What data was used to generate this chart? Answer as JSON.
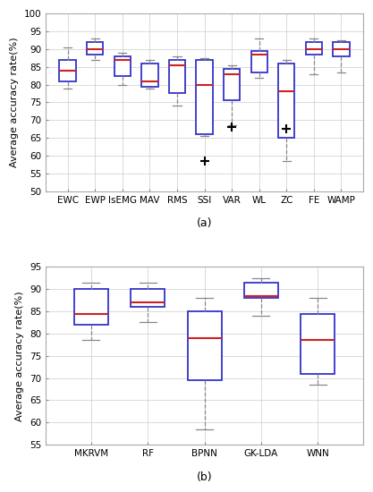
{
  "plot_a": {
    "categories": [
      "EWC",
      "EWP",
      "IsEMG",
      "MAV",
      "RMS",
      "SSI",
      "VAR",
      "WL",
      "ZC",
      "FE",
      "WAMP"
    ],
    "boxes": [
      {
        "whislo": 79.0,
        "q1": 81.0,
        "med": 84.0,
        "q3": 87.0,
        "whishi": 90.5,
        "fliers": []
      },
      {
        "whislo": 87.0,
        "q1": 88.5,
        "med": 90.0,
        "q3": 92.0,
        "whishi": 93.0,
        "fliers": []
      },
      {
        "whislo": 80.0,
        "q1": 82.5,
        "med": 87.0,
        "q3": 88.0,
        "whishi": 89.0,
        "fliers": []
      },
      {
        "whislo": 79.0,
        "q1": 79.5,
        "med": 81.0,
        "q3": 86.0,
        "whishi": 87.0,
        "fliers": []
      },
      {
        "whislo": 74.0,
        "q1": 77.5,
        "med": 85.5,
        "q3": 87.0,
        "whishi": 88.0,
        "fliers": []
      },
      {
        "whislo": 65.5,
        "q1": 66.0,
        "med": 80.0,
        "q3": 87.0,
        "whishi": 87.5,
        "fliers": [
          58.5
        ]
      },
      {
        "whislo": 68.5,
        "q1": 75.5,
        "med": 83.0,
        "q3": 84.5,
        "whishi": 85.5,
        "fliers": [
          68.0
        ]
      },
      {
        "whislo": 82.0,
        "q1": 83.5,
        "med": 88.5,
        "q3": 89.5,
        "whishi": 93.0,
        "fliers": []
      },
      {
        "whislo": 58.5,
        "q1": 65.0,
        "med": 78.0,
        "q3": 86.0,
        "whishi": 87.0,
        "fliers": [
          67.5
        ]
      },
      {
        "whislo": 83.0,
        "q1": 88.5,
        "med": 90.0,
        "q3": 92.0,
        "whishi": 93.0,
        "fliers": []
      },
      {
        "whislo": 83.5,
        "q1": 88.0,
        "med": 90.0,
        "q3": 92.0,
        "whishi": 92.5,
        "fliers": []
      }
    ],
    "ylim": [
      50,
      100
    ],
    "yticks": [
      50,
      55,
      60,
      65,
      70,
      75,
      80,
      85,
      90,
      95,
      100
    ],
    "ylabel": "Average accuracy rate(%)",
    "label": "(a)"
  },
  "plot_b": {
    "categories": [
      "MKRVM",
      "RF",
      "BPNN",
      "GK-LDA",
      "WNN"
    ],
    "boxes": [
      {
        "whislo": 78.5,
        "q1": 82.0,
        "med": 84.5,
        "q3": 90.0,
        "whishi": 91.5,
        "fliers": []
      },
      {
        "whislo": 82.5,
        "q1": 86.0,
        "med": 87.0,
        "q3": 90.0,
        "whishi": 91.5,
        "fliers": []
      },
      {
        "whislo": 58.5,
        "q1": 69.5,
        "med": 79.0,
        "q3": 85.0,
        "whishi": 88.0,
        "fliers": []
      },
      {
        "whislo": 84.0,
        "q1": 88.0,
        "med": 88.5,
        "q3": 91.5,
        "whishi": 92.5,
        "fliers": []
      },
      {
        "whislo": 68.5,
        "q1": 71.0,
        "med": 78.5,
        "q3": 84.5,
        "whishi": 88.0,
        "fliers": []
      }
    ],
    "ylim": [
      55,
      95
    ],
    "yticks": [
      55,
      60,
      65,
      70,
      75,
      80,
      85,
      90,
      95
    ],
    "ylabel": "Average accuracy rate(%)",
    "label": "(b)"
  },
  "box_color": "#3333cc",
  "median_color": "#cc2222",
  "flier_color": "#cc2222",
  "whisker_color": "#888888",
  "cap_color": "#888888",
  "bg_color": "#ffffff",
  "grid_color": "#cccccc",
  "label_fontsize": 9,
  "tick_fontsize": 7.5,
  "ylabel_fontsize": 8
}
